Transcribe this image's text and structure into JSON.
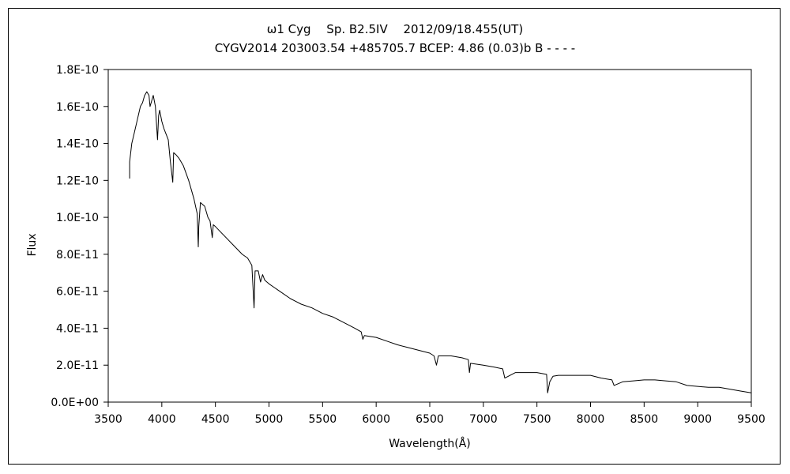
{
  "chart_data": {
    "type": "line",
    "title": "ω1 Cyg　 Sp. B2.5IV　 2012/09/18.455(UT)",
    "subtitle": "CYGV2014 203003.54 +485705.7 BCEP: 4.86 (0.03)b B - - - -",
    "xlabel": "Wavelength(Å)",
    "ylabel": "Flux",
    "xlim": [
      3500,
      9500
    ],
    "ylim": [
      0,
      1.8e-10
    ],
    "x_ticks": [
      3500,
      4000,
      4500,
      5000,
      5500,
      6000,
      6500,
      7000,
      7500,
      8000,
      8500,
      9000,
      9500
    ],
    "x_tick_labels": [
      "3500",
      "4000",
      "4500",
      "5000",
      "5500",
      "6000",
      "6500",
      "7000",
      "7500",
      "8000",
      "8500",
      "9000",
      "9500"
    ],
    "y_ticks": [
      0,
      2e-11,
      4e-11,
      6e-11,
      8e-11,
      1e-10,
      1.2e-10,
      1.4e-10,
      1.6e-10,
      1.8e-10
    ],
    "y_tick_labels": [
      "0.0E+00",
      "2.0E-11",
      "4.0E-11",
      "6.0E-11",
      "8.0E-11",
      "1.0E-10",
      "1.2E-10",
      "1.4E-10",
      "1.6E-10",
      "1.8E-10"
    ],
    "grid": false,
    "legend": "none",
    "series": [
      {
        "color": "#000000",
        "x": [
          3700,
          3700,
          3720,
          3740,
          3760,
          3780,
          3800,
          3820,
          3840,
          3860,
          3880,
          3890,
          3900,
          3920,
          3940,
          3960,
          3970,
          3980,
          4000,
          4020,
          4040,
          4060,
          4080,
          4102,
          4110,
          4130,
          4160,
          4200,
          4250,
          4300,
          4330,
          4340,
          4345,
          4360,
          4400,
          4430,
          4450,
          4471,
          4480,
          4500,
          4550,
          4600,
          4650,
          4700,
          4750,
          4800,
          4840,
          4861,
          4870,
          4900,
          4921,
          4940,
          4960,
          5000,
          5050,
          5100,
          5200,
          5300,
          5400,
          5500,
          5600,
          5700,
          5800,
          5860,
          5876,
          5890,
          6000,
          6100,
          6200,
          6300,
          6400,
          6500,
          6540,
          6563,
          6580,
          6600,
          6700,
          6800,
          6860,
          6870,
          6880,
          7000,
          7100,
          7180,
          7200,
          7300,
          7500,
          7590,
          7600,
          7620,
          7650,
          7700,
          7800,
          8000,
          8100,
          8200,
          8220,
          8300,
          8400,
          8500,
          8600,
          8700,
          8800,
          8900,
          9000,
          9100,
          9200,
          9300,
          9400,
          9500
        ],
        "values": [
          1.21e-10,
          1.3e-10,
          1.4e-10,
          1.45e-10,
          1.5e-10,
          1.55e-10,
          1.6e-10,
          1.62e-10,
          1.66e-10,
          1.68e-10,
          1.66e-10,
          1.6e-10,
          1.62e-10,
          1.66e-10,
          1.6e-10,
          1.42e-10,
          1.55e-10,
          1.58e-10,
          1.52e-10,
          1.48e-10,
          1.45e-10,
          1.42e-10,
          1.3e-10,
          1.19e-10,
          1.35e-10,
          1.34e-10,
          1.32e-10,
          1.28e-10,
          1.2e-10,
          1.1e-10,
          1.02e-10,
          8.4e-11,
          9.5e-11,
          1.08e-10,
          1.06e-10,
          1e-10,
          9.8e-11,
          8.9e-11,
          9.6e-11,
          9.5e-11,
          9.2e-11,
          8.9e-11,
          8.6e-11,
          8.3e-11,
          8e-11,
          7.8e-11,
          7.4e-11,
          5.1e-11,
          7.1e-11,
          7.1e-11,
          6.5e-11,
          6.9e-11,
          6.6e-11,
          6.4e-11,
          6.2e-11,
          6e-11,
          5.6e-11,
          5.3e-11,
          5.1e-11,
          4.8e-11,
          4.6e-11,
          4.3e-11,
          4e-11,
          3.8e-11,
          3.4e-11,
          3.6e-11,
          3.5e-11,
          3.3e-11,
          3.1e-11,
          2.95e-11,
          2.8e-11,
          2.65e-11,
          2.5e-11,
          2e-11,
          2.5e-11,
          2.5e-11,
          2.5e-11,
          2.4e-11,
          2.3e-11,
          1.6e-11,
          2.1e-11,
          2e-11,
          1.9e-11,
          1.8e-11,
          1.3e-11,
          1.6e-11,
          1.6e-11,
          1.5e-11,
          5e-12,
          1.1e-11,
          1.4e-11,
          1.45e-11,
          1.45e-11,
          1.45e-11,
          1.3e-11,
          1.2e-11,
          9e-12,
          1.1e-11,
          1.15e-11,
          1.2e-11,
          1.2e-11,
          1.15e-11,
          1.1e-11,
          9e-12,
          8.5e-12,
          8e-12,
          8e-12,
          7e-12,
          6e-12,
          5e-12
        ]
      }
    ]
  }
}
